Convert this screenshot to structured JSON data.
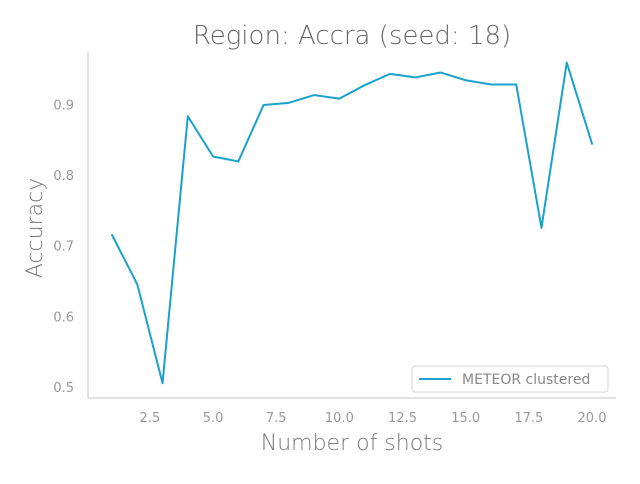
{
  "chart_data": {
    "type": "line",
    "title": "Region: Accra (seed: 18)",
    "xlabel": "Number of shots",
    "ylabel": "Accuracy",
    "xlim": [
      0.05,
      20.95
    ],
    "ylim": [
      0.485,
      0.975
    ],
    "xticks": [
      2.5,
      5.0,
      7.5,
      10.0,
      12.5,
      15.0,
      17.5,
      20.0
    ],
    "xtick_labels": [
      "2.5",
      "5.0",
      "7.5",
      "10.0",
      "12.5",
      "15.0",
      "17.5",
      "20.0"
    ],
    "yticks": [
      0.5,
      0.6,
      0.7,
      0.8,
      0.9
    ],
    "ytick_labels": [
      "0.5",
      "0.6",
      "0.7",
      "0.8",
      "0.9"
    ],
    "grid": false,
    "legend_position": "bottom-right",
    "series": [
      {
        "name": "METEOR clustered",
        "color": "#1aa1cc",
        "x": [
          1,
          2,
          3,
          4,
          5,
          6,
          7,
          8,
          9,
          10,
          11,
          12,
          13,
          14,
          15,
          16,
          17,
          18,
          19,
          20
        ],
        "y": [
          0.716,
          0.646,
          0.506,
          0.884,
          0.827,
          0.82,
          0.9,
          0.903,
          0.914,
          0.909,
          0.928,
          0.944,
          0.939,
          0.946,
          0.935,
          0.929,
          0.929,
          0.726,
          0.96,
          0.845
        ]
      }
    ]
  }
}
